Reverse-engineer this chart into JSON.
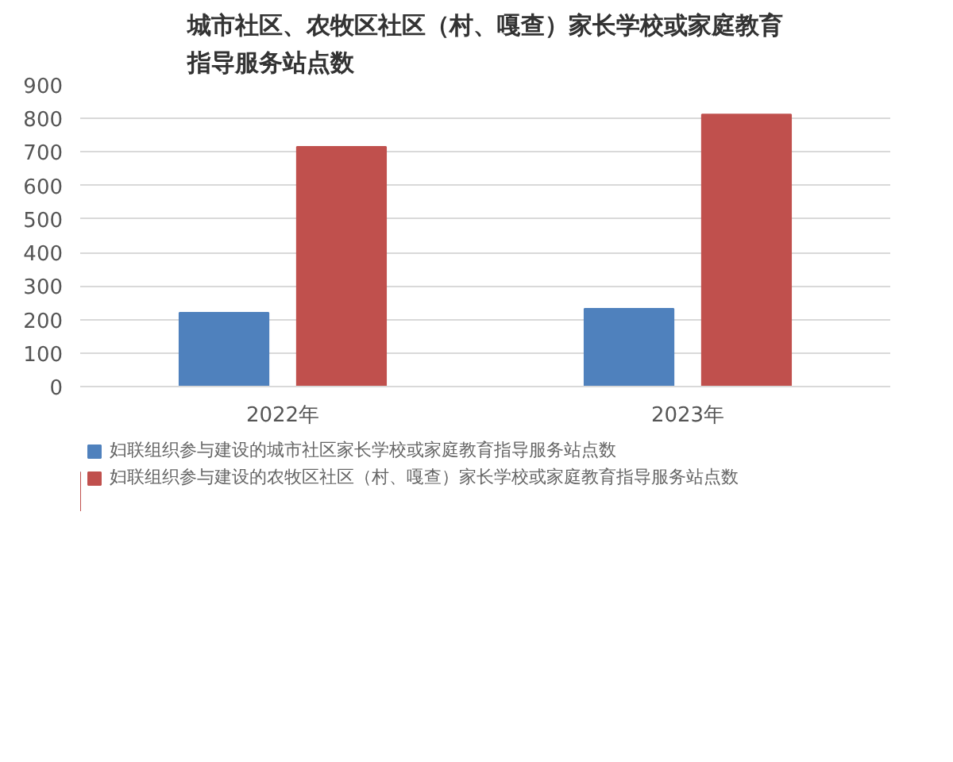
{
  "chart_data": {
    "type": "bar",
    "title": "城市社区、农牧区社区（村、嘎查）家长学校或家庭教育指导服务站点数",
    "categories": [
      "2022年",
      "2023年"
    ],
    "series": [
      {
        "name": "妇联组织参与建设的城市社区家长学校或家庭教育指导服务站点数",
        "color": "#4f81bd",
        "values": [
          220,
          232
        ]
      },
      {
        "name": "妇联组织参与建设的农牧区社区（村、嘎查）家长学校或家庭教育指导服务站点数",
        "color": "#c0504d",
        "values": [
          715,
          812
        ]
      }
    ],
    "ylim": [
      0,
      900
    ],
    "yticks": [
      0,
      100,
      200,
      300,
      400,
      500,
      600,
      700,
      800,
      900
    ],
    "grid": "y",
    "legend": "bottom"
  }
}
